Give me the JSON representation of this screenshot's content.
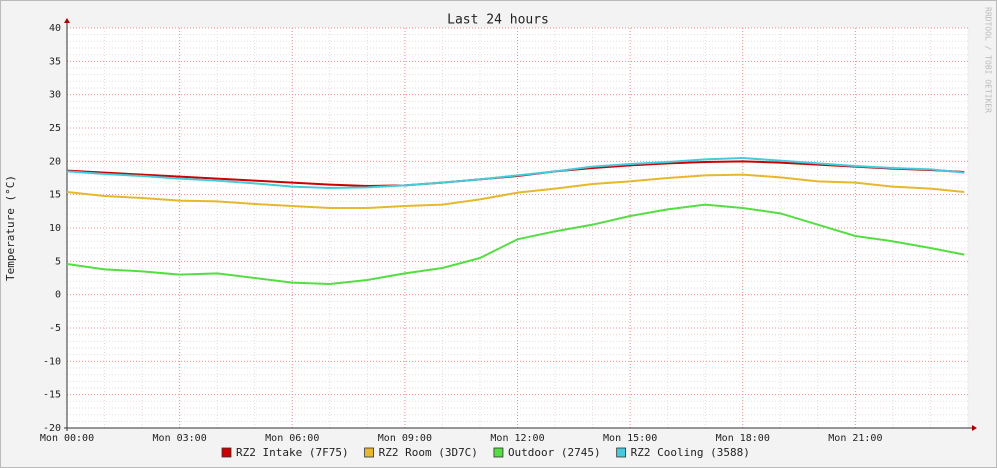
{
  "chart_data": {
    "type": "line",
    "title": "Last 24 hours",
    "y_label": "Temperature (°C)",
    "watermark": "RRDTOOL / TOBI OETIKER",
    "x": [
      0,
      1,
      2,
      3,
      4,
      5,
      6,
      7,
      8,
      9,
      10,
      11,
      12,
      13,
      14,
      15,
      16,
      17,
      18,
      19,
      20,
      21,
      22,
      23,
      23.9
    ],
    "xlim": [
      0,
      24
    ],
    "xticks": [
      {
        "value": 0,
        "label": "Mon 00:00"
      },
      {
        "value": 3,
        "label": "Mon 03:00"
      },
      {
        "value": 6,
        "label": "Mon 06:00"
      },
      {
        "value": 9,
        "label": "Mon 09:00"
      },
      {
        "value": 12,
        "label": "Mon 12:00"
      },
      {
        "value": 15,
        "label": "Mon 15:00"
      },
      {
        "value": 18,
        "label": "Mon 18:00"
      },
      {
        "value": 21,
        "label": "Mon 21:00"
      }
    ],
    "ylim": [
      -20,
      40
    ],
    "yticks": [
      -20,
      -15,
      -10,
      -5,
      0,
      5,
      10,
      15,
      20,
      25,
      30,
      35,
      40
    ],
    "y_minor_step": 1,
    "x_minor_step": 1,
    "grid": true,
    "series": [
      {
        "name": "RZ2 Intake (7F75)",
        "color": "#cc0000",
        "values": [
          18.6,
          18.3,
          18.0,
          17.7,
          17.4,
          17.1,
          16.8,
          16.5,
          16.3,
          16.4,
          16.8,
          17.3,
          17.8,
          18.5,
          19.0,
          19.4,
          19.7,
          19.9,
          20.0,
          19.8,
          19.5,
          19.2,
          18.9,
          18.7,
          18.4
        ]
      },
      {
        "name": "RZ2 Room (3D7C)",
        "color": "#e6b82e",
        "values": [
          15.4,
          14.8,
          14.5,
          14.1,
          14.0,
          13.6,
          13.3,
          13.0,
          13.0,
          13.3,
          13.5,
          14.3,
          15.3,
          15.9,
          16.6,
          17.0,
          17.5,
          17.9,
          18.0,
          17.6,
          17.0,
          16.8,
          16.2,
          15.9,
          15.4
        ]
      },
      {
        "name": "Outdoor (2745)",
        "color": "#55dd44",
        "values": [
          4.6,
          3.8,
          3.5,
          3.0,
          3.2,
          2.5,
          1.8,
          1.6,
          2.2,
          3.2,
          4.0,
          5.5,
          8.3,
          9.5,
          10.5,
          11.8,
          12.8,
          13.5,
          13.0,
          12.2,
          10.5,
          8.8,
          8.0,
          7.0,
          6.0
        ]
      },
      {
        "name": "RZ2 Cooling (3588)",
        "color": "#44ccdd",
        "values": [
          18.5,
          18.1,
          17.8,
          17.4,
          17.1,
          16.7,
          16.2,
          16.0,
          16.1,
          16.4,
          16.8,
          17.3,
          17.9,
          18.5,
          19.2,
          19.6,
          19.9,
          20.3,
          20.5,
          20.1,
          19.7,
          19.3,
          19.0,
          18.8,
          18.3
        ]
      }
    ]
  }
}
